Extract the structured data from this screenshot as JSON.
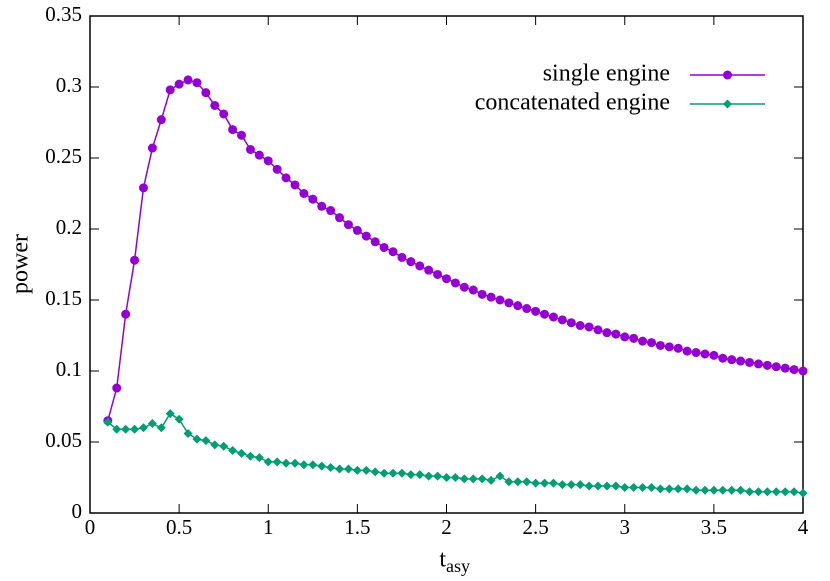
{
  "chart_data": {
    "type": "line",
    "xlabel": "t",
    "xlabel_subscript": "asy",
    "ylabel": "power",
    "x": [
      0.1,
      0.15,
      0.2,
      0.25,
      0.3,
      0.35,
      0.4,
      0.45,
      0.5,
      0.55,
      0.6,
      0.65,
      0.7,
      0.75,
      0.8,
      0.85,
      0.9,
      0.95,
      1.0,
      1.05,
      1.1,
      1.15,
      1.2,
      1.25,
      1.3,
      1.35,
      1.4,
      1.45,
      1.5,
      1.55,
      1.6,
      1.65,
      1.7,
      1.75,
      1.8,
      1.85,
      1.9,
      1.95,
      2.0,
      2.05,
      2.1,
      2.15,
      2.2,
      2.25,
      2.3,
      2.35,
      2.4,
      2.45,
      2.5,
      2.55,
      2.6,
      2.65,
      2.7,
      2.75,
      2.8,
      2.85,
      2.9,
      2.95,
      3.0,
      3.05,
      3.1,
      3.15,
      3.2,
      3.25,
      3.3,
      3.35,
      3.4,
      3.45,
      3.5,
      3.55,
      3.6,
      3.65,
      3.7,
      3.75,
      3.8,
      3.85,
      3.9,
      3.95,
      4.0
    ],
    "series": [
      {
        "name": "single engine",
        "color": "#9400d3",
        "marker": "circle",
        "values": [
          0.065,
          0.088,
          0.14,
          0.178,
          0.229,
          0.257,
          0.277,
          0.298,
          0.302,
          0.305,
          0.303,
          0.296,
          0.287,
          0.281,
          0.27,
          0.266,
          0.256,
          0.252,
          0.248,
          0.242,
          0.236,
          0.231,
          0.225,
          0.221,
          0.216,
          0.213,
          0.208,
          0.203,
          0.199,
          0.195,
          0.191,
          0.187,
          0.184,
          0.18,
          0.177,
          0.174,
          0.171,
          0.168,
          0.165,
          0.162,
          0.159,
          0.157,
          0.154,
          0.152,
          0.15,
          0.148,
          0.146,
          0.144,
          0.142,
          0.14,
          0.138,
          0.136,
          0.134,
          0.132,
          0.131,
          0.129,
          0.127,
          0.126,
          0.124,
          0.123,
          0.121,
          0.12,
          0.118,
          0.117,
          0.116,
          0.114,
          0.113,
          0.112,
          0.111,
          0.109,
          0.108,
          0.107,
          0.106,
          0.105,
          0.104,
          0.103,
          0.102,
          0.101,
          0.1
        ]
      },
      {
        "name": "concatenated engine",
        "color": "#009e73",
        "marker": "diamond",
        "values": [
          0.064,
          0.059,
          0.059,
          0.059,
          0.06,
          0.063,
          0.06,
          0.07,
          0.066,
          0.056,
          0.052,
          0.051,
          0.048,
          0.047,
          0.044,
          0.042,
          0.04,
          0.039,
          0.036,
          0.036,
          0.035,
          0.035,
          0.034,
          0.034,
          0.033,
          0.032,
          0.031,
          0.031,
          0.03,
          0.03,
          0.029,
          0.028,
          0.028,
          0.028,
          0.027,
          0.027,
          0.026,
          0.026,
          0.025,
          0.025,
          0.024,
          0.024,
          0.024,
          0.023,
          0.026,
          0.022,
          0.022,
          0.022,
          0.021,
          0.021,
          0.021,
          0.02,
          0.02,
          0.02,
          0.019,
          0.019,
          0.019,
          0.019,
          0.018,
          0.018,
          0.018,
          0.018,
          0.017,
          0.017,
          0.017,
          0.017,
          0.016,
          0.016,
          0.016,
          0.016,
          0.016,
          0.016,
          0.015,
          0.015,
          0.015,
          0.015,
          0.015,
          0.015,
          0.014
        ]
      }
    ],
    "xlim": [
      0,
      4
    ],
    "xticks": [
      0,
      0.5,
      1,
      1.5,
      2,
      2.5,
      3,
      3.5,
      4
    ],
    "ylim": [
      0,
      0.35
    ],
    "yticks": [
      0,
      0.05,
      0.1,
      0.15,
      0.2,
      0.25,
      0.3,
      0.35
    ],
    "grid": false,
    "legend": "top-right"
  }
}
